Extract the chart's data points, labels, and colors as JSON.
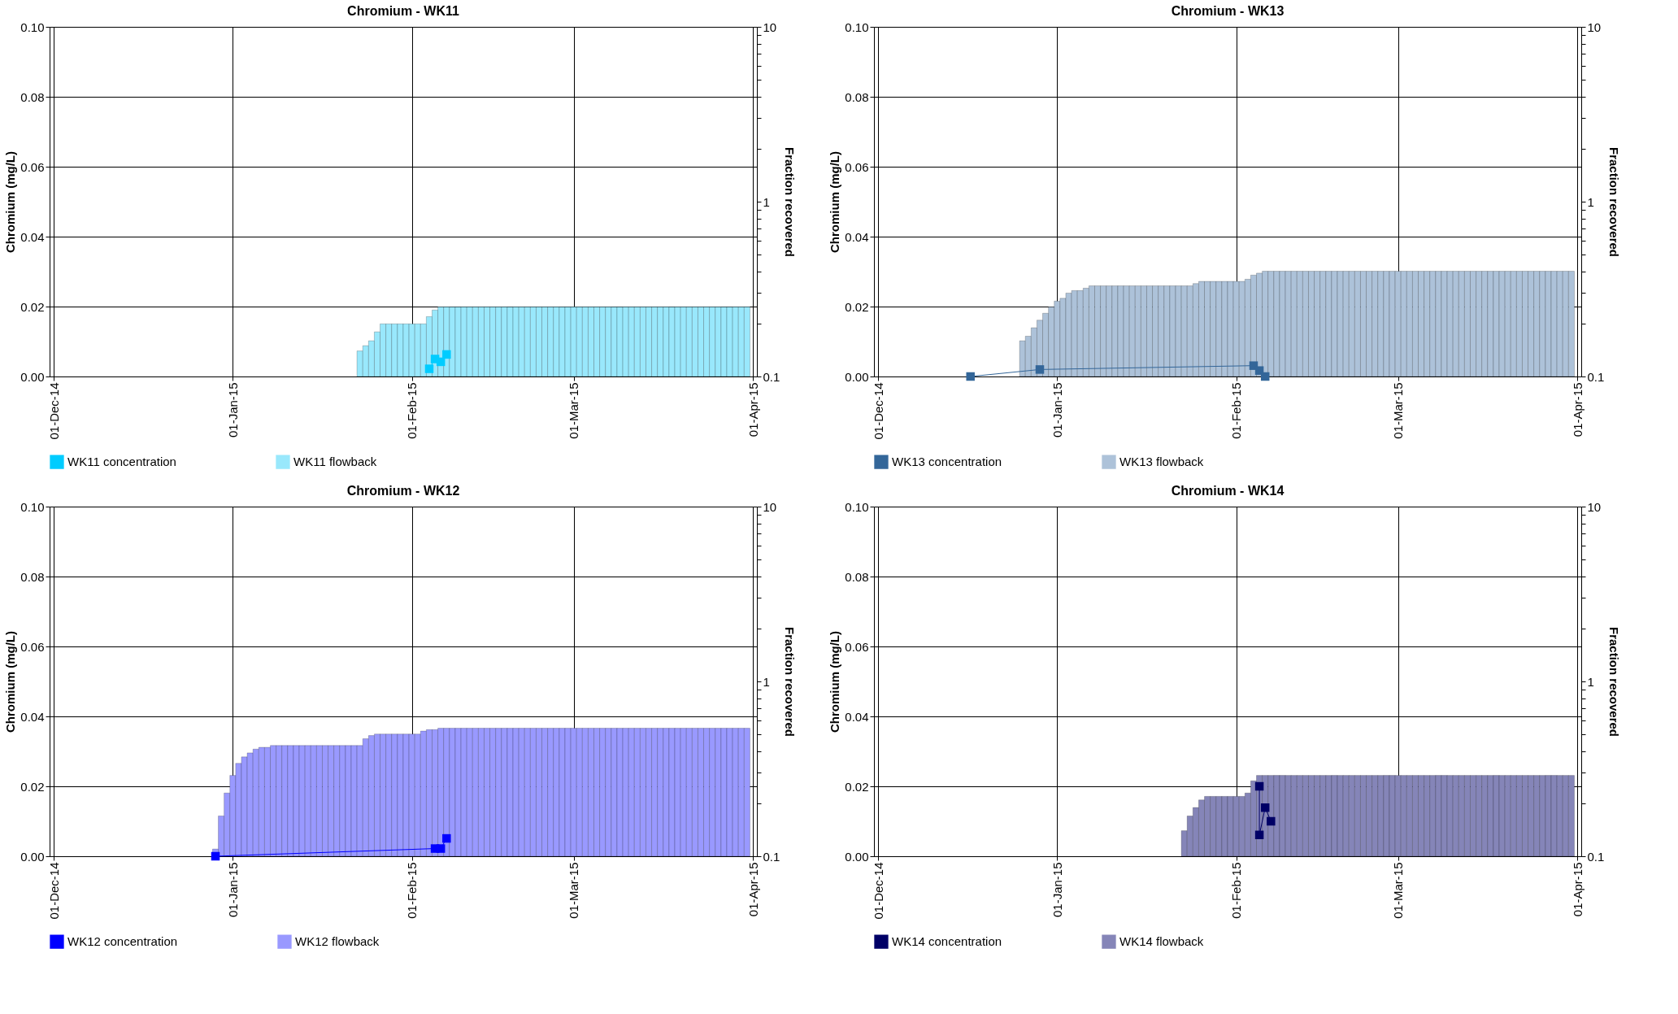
{
  "chart_data": [
    {
      "type": "bar",
      "title": "Chromium - WK11",
      "ylabel": "Chromium (mg/L)",
      "y2label": "Fraction recovered",
      "xlim": [
        "2014-12-01",
        "2015-04-01"
      ],
      "xticks": [
        {
          "value": "2014-12-01",
          "label": "01-Dec-14"
        },
        {
          "value": "2015-01-01",
          "label": "01-Jan-15"
        },
        {
          "value": "2015-02-01",
          "label": "01-Feb-15"
        },
        {
          "value": "2015-03-01",
          "label": "01-Mar-15"
        },
        {
          "value": "2015-04-01",
          "label": "01-Apr-15"
        }
      ],
      "ylim": [
        0,
        0.1
      ],
      "yticks": [
        {
          "value": 0,
          "label": "0.00"
        },
        {
          "value": 0.02,
          "label": "0.02"
        },
        {
          "value": 0.04,
          "label": "0.04"
        },
        {
          "value": 0.06,
          "label": "0.06"
        },
        {
          "value": 0.08,
          "label": "0.08"
        },
        {
          "value": 0.1,
          "label": "0.10"
        }
      ],
      "y2lim": [
        0.1,
        10
      ],
      "log": "y2",
      "y2ticks": [
        0.1,
        {
          "value": 0.2,
          "label": null
        },
        {
          "value": 0.3,
          "label": null
        },
        {
          "value": 0.4,
          "label": null
        },
        {
          "value": 0.5,
          "label": null
        },
        {
          "value": 0.6,
          "label": null
        },
        {
          "value": 0.7,
          "label": null
        },
        {
          "value": 0.8,
          "label": null
        },
        {
          "value": 0.9,
          "label": null
        },
        1,
        {
          "value": 2,
          "label": null
        },
        {
          "value": 3,
          "label": null
        },
        {
          "value": 4,
          "label": null
        },
        {
          "value": 5,
          "label": null
        },
        {
          "value": 6,
          "label": null
        },
        {
          "value": 7,
          "label": null
        },
        {
          "value": 8,
          "label": null
        },
        {
          "value": 9,
          "label": null
        },
        10
      ],
      "grid": true,
      "legend": "bottom",
      "marker": "square",
      "line_style": "solid",
      "series": [
        {
          "name": "WK11 concentration",
          "type": "line",
          "color": "#00ccff",
          "x": [
            "2015-02-04",
            "2015-02-05",
            "2015-02-06",
            "2015-02-07"
          ],
          "values": [
            0.0022,
            0.005,
            0.0042,
            0.0063
          ]
        },
        {
          "name": "WK11 flowback",
          "axis": "y2",
          "color": "#99e8fc",
          "x": [
            "2015-01-23",
            "2015-01-24",
            "2015-01-25",
            "2015-01-26",
            "2015-01-27",
            "2015-01-28",
            "2015-01-29",
            "2015-01-30",
            "2015-01-31",
            "2015-02-01",
            "2015-02-02",
            "2015-02-03",
            "2015-02-04",
            "2015-02-05",
            "2015-02-06",
            "2015-02-07",
            "2015-02-08",
            "2015-02-09",
            "2015-02-10",
            "2015-02-11",
            "2015-02-12",
            "2015-02-13",
            "2015-02-14",
            "2015-02-15",
            "2015-02-16",
            "2015-02-17",
            "2015-02-18",
            "2015-02-19",
            "2015-02-20",
            "2015-02-21",
            "2015-02-22",
            "2015-02-23",
            "2015-02-24",
            "2015-02-25",
            "2015-02-26",
            "2015-02-27",
            "2015-02-28",
            "2015-03-01",
            "2015-03-02",
            "2015-03-03",
            "2015-03-04",
            "2015-03-05",
            "2015-03-06",
            "2015-03-07",
            "2015-03-08",
            "2015-03-09",
            "2015-03-10",
            "2015-03-11",
            "2015-03-12",
            "2015-03-13",
            "2015-03-14",
            "2015-03-15",
            "2015-03-16",
            "2015-03-17",
            "2015-03-18",
            "2015-03-19",
            "2015-03-20",
            "2015-03-21",
            "2015-03-22",
            "2015-03-23",
            "2015-03-24",
            "2015-03-25",
            "2015-03-26",
            "2015-03-27",
            "2015-03-28",
            "2015-03-29",
            "2015-03-30",
            "2015-03-31"
          ],
          "values": [
            0.14,
            0.15,
            0.16,
            0.18,
            0.2,
            0.2,
            0.2,
            0.2,
            0.2,
            0.2,
            0.2,
            0.2,
            0.22,
            0.24,
            0.25,
            0.25,
            0.25,
            0.25,
            0.25,
            0.25,
            0.25,
            0.25,
            0.25,
            0.25,
            0.25,
            0.25,
            0.25,
            0.25,
            0.25,
            0.25,
            0.25,
            0.25,
            0.25,
            0.25,
            0.25,
            0.25,
            0.25,
            0.25,
            0.25,
            0.25,
            0.25,
            0.25,
            0.25,
            0.25,
            0.25,
            0.25,
            0.25,
            0.25,
            0.25,
            0.25,
            0.25,
            0.25,
            0.25,
            0.25,
            0.25,
            0.25,
            0.25,
            0.25,
            0.25,
            0.25,
            0.25,
            0.25,
            0.25,
            0.25,
            0.25,
            0.25,
            0.25,
            0.25
          ]
        }
      ]
    },
    {
      "type": "bar",
      "title": "Chromium - WK13",
      "ylabel": "Chromium (mg/L)",
      "y2label": "Fraction recovered",
      "xlim": [
        "2014-12-01",
        "2015-04-01"
      ],
      "xticks": [
        {
          "value": "2014-12-01",
          "label": "01-Dec-14"
        },
        {
          "value": "2015-01-01",
          "label": "01-Jan-15"
        },
        {
          "value": "2015-02-01",
          "label": "01-Feb-15"
        },
        {
          "value": "2015-03-01",
          "label": "01-Mar-15"
        },
        {
          "value": "2015-04-01",
          "label": "01-Apr-15"
        }
      ],
      "ylim": [
        0,
        0.1
      ],
      "yticks": [
        {
          "value": 0,
          "label": "0.00"
        },
        {
          "value": 0.02,
          "label": "0.02"
        },
        {
          "value": 0.04,
          "label": "0.04"
        },
        {
          "value": 0.06,
          "label": "0.06"
        },
        {
          "value": 0.08,
          "label": "0.08"
        },
        {
          "value": 0.1,
          "label": "0.10"
        }
      ],
      "y2lim": [
        0.1,
        10
      ],
      "log": "y2",
      "y2ticks": [
        0.1,
        {
          "value": 0.2,
          "label": null
        },
        {
          "value": 0.3,
          "label": null
        },
        {
          "value": 0.4,
          "label": null
        },
        {
          "value": 0.5,
          "label": null
        },
        {
          "value": 0.6,
          "label": null
        },
        {
          "value": 0.7,
          "label": null
        },
        {
          "value": 0.8,
          "label": null
        },
        {
          "value": 0.9,
          "label": null
        },
        1,
        {
          "value": 2,
          "label": null
        },
        {
          "value": 3,
          "label": null
        },
        {
          "value": 4,
          "label": null
        },
        {
          "value": 5,
          "label": null
        },
        {
          "value": 6,
          "label": null
        },
        {
          "value": 7,
          "label": null
        },
        {
          "value": 8,
          "label": null
        },
        {
          "value": 9,
          "label": null
        },
        10
      ],
      "grid": true,
      "legend": "bottom",
      "marker": "square",
      "line_style": "solid",
      "series": [
        {
          "name": "WK13 concentration",
          "type": "line",
          "color": "#336699",
          "x": [
            "2014-12-17",
            "2014-12-29",
            "2015-02-04",
            "2015-02-05",
            "2015-02-06"
          ],
          "values": [
            0,
            0.002,
            0.0031,
            0.0017,
            0
          ]
        },
        {
          "name": "WK13 flowback",
          "axis": "y2",
          "color": "#adc2d9",
          "x": [
            "2014-12-26",
            "2014-12-27",
            "2014-12-28",
            "2014-12-29",
            "2014-12-30",
            "2014-12-31",
            "2015-01-01",
            "2015-01-02",
            "2015-01-03",
            "2015-01-04",
            "2015-01-05",
            "2015-01-06",
            "2015-01-07",
            "2015-01-08",
            "2015-01-09",
            "2015-01-10",
            "2015-01-11",
            "2015-01-12",
            "2015-01-13",
            "2015-01-14",
            "2015-01-15",
            "2015-01-16",
            "2015-01-17",
            "2015-01-18",
            "2015-01-19",
            "2015-01-20",
            "2015-01-21",
            "2015-01-22",
            "2015-01-23",
            "2015-01-24",
            "2015-01-25",
            "2015-01-26",
            "2015-01-27",
            "2015-01-28",
            "2015-01-29",
            "2015-01-30",
            "2015-01-31",
            "2015-02-01",
            "2015-02-02",
            "2015-02-03",
            "2015-02-04",
            "2015-02-05",
            "2015-02-06",
            "2015-02-07",
            "2015-02-08",
            "2015-02-09",
            "2015-02-10",
            "2015-02-11",
            "2015-02-12",
            "2015-02-13",
            "2015-02-14",
            "2015-02-15",
            "2015-02-16",
            "2015-02-17",
            "2015-02-18",
            "2015-02-19",
            "2015-02-20",
            "2015-02-21",
            "2015-02-22",
            "2015-02-23",
            "2015-02-24",
            "2015-02-25",
            "2015-02-26",
            "2015-02-27",
            "2015-02-28",
            "2015-03-01",
            "2015-03-02",
            "2015-03-03",
            "2015-03-04",
            "2015-03-05",
            "2015-03-06",
            "2015-03-07",
            "2015-03-08",
            "2015-03-09",
            "2015-03-10",
            "2015-03-11",
            "2015-03-12",
            "2015-03-13",
            "2015-03-14",
            "2015-03-15",
            "2015-03-16",
            "2015-03-17",
            "2015-03-18",
            "2015-03-19",
            "2015-03-20",
            "2015-03-21",
            "2015-03-22",
            "2015-03-23",
            "2015-03-24",
            "2015-03-25",
            "2015-03-26",
            "2015-03-27",
            "2015-03-28",
            "2015-03-29",
            "2015-03-30",
            "2015-03-31"
          ],
          "values": [
            0.16,
            0.17,
            0.19,
            0.21,
            0.23,
            0.25,
            0.27,
            0.28,
            0.3,
            0.31,
            0.31,
            0.32,
            0.33,
            0.33,
            0.33,
            0.33,
            0.33,
            0.33,
            0.33,
            0.33,
            0.33,
            0.33,
            0.33,
            0.33,
            0.33,
            0.33,
            0.33,
            0.33,
            0.33,
            0.33,
            0.34,
            0.35,
            0.35,
            0.35,
            0.35,
            0.35,
            0.35,
            0.35,
            0.35,
            0.36,
            0.38,
            0.39,
            0.4,
            0.4,
            0.4,
            0.4,
            0.4,
            0.4,
            0.4,
            0.4,
            0.4,
            0.4,
            0.4,
            0.4,
            0.4,
            0.4,
            0.4,
            0.4,
            0.4,
            0.4,
            0.4,
            0.4,
            0.4,
            0.4,
            0.4,
            0.4,
            0.4,
            0.4,
            0.4,
            0.4,
            0.4,
            0.4,
            0.4,
            0.4,
            0.4,
            0.4,
            0.4,
            0.4,
            0.4,
            0.4,
            0.4,
            0.4,
            0.4,
            0.4,
            0.4,
            0.4,
            0.4,
            0.4,
            0.4,
            0.4,
            0.4,
            0.4,
            0.4,
            0.4,
            0.4,
            0.4
          ]
        }
      ]
    },
    {
      "type": "bar",
      "title": "Chromium - WK12",
      "ylabel": "Chromium (mg/L)",
      "y2label": "Fraction recovered",
      "xlim": [
        "2014-12-01",
        "2015-04-01"
      ],
      "xticks": [
        {
          "value": "2014-12-01",
          "label": "01-Dec-14"
        },
        {
          "value": "2015-01-01",
          "label": "01-Jan-15"
        },
        {
          "value": "2015-02-01",
          "label": "01-Feb-15"
        },
        {
          "value": "2015-03-01",
          "label": "01-Mar-15"
        },
        {
          "value": "2015-04-01",
          "label": "01-Apr-15"
        }
      ],
      "ylim": [
        0,
        0.1
      ],
      "yticks": [
        {
          "value": 0,
          "label": "0.00"
        },
        {
          "value": 0.02,
          "label": "0.02"
        },
        {
          "value": 0.04,
          "label": "0.04"
        },
        {
          "value": 0.06,
          "label": "0.06"
        },
        {
          "value": 0.08,
          "label": "0.08"
        },
        {
          "value": 0.1,
          "label": "0.10"
        }
      ],
      "y2lim": [
        0.1,
        10
      ],
      "log": "y2",
      "y2ticks": [
        0.1,
        {
          "value": 0.2,
          "label": null
        },
        {
          "value": 0.3,
          "label": null
        },
        {
          "value": 0.4,
          "label": null
        },
        {
          "value": 0.5,
          "label": null
        },
        {
          "value": 0.6,
          "label": null
        },
        {
          "value": 0.7,
          "label": null
        },
        {
          "value": 0.8,
          "label": null
        },
        {
          "value": 0.9,
          "label": null
        },
        1,
        {
          "value": 2,
          "label": null
        },
        {
          "value": 3,
          "label": null
        },
        {
          "value": 4,
          "label": null
        },
        {
          "value": 5,
          "label": null
        },
        {
          "value": 6,
          "label": null
        },
        {
          "value": 7,
          "label": null
        },
        {
          "value": 8,
          "label": null
        },
        {
          "value": 9,
          "label": null
        },
        10
      ],
      "grid": true,
      "legend": "bottom",
      "marker": "square",
      "line_style": "solid",
      "series": [
        {
          "name": "WK12 concentration",
          "type": "line",
          "color": "#0000ff",
          "x": [
            "2014-12-29",
            "2015-02-05",
            "2015-02-06",
            "2015-02-07"
          ],
          "values": [
            0,
            0.0022,
            0.0022,
            0.0051
          ]
        },
        {
          "name": "WK12 flowback",
          "axis": "y2",
          "color": "#9999ff",
          "x": [
            "2014-12-29",
            "2014-12-30",
            "2014-12-31",
            "2015-01-01",
            "2015-01-02",
            "2015-01-03",
            "2015-01-04",
            "2015-01-05",
            "2015-01-06",
            "2015-01-07",
            "2015-01-08",
            "2015-01-09",
            "2015-01-10",
            "2015-01-11",
            "2015-01-12",
            "2015-01-13",
            "2015-01-14",
            "2015-01-15",
            "2015-01-16",
            "2015-01-17",
            "2015-01-18",
            "2015-01-19",
            "2015-01-20",
            "2015-01-21",
            "2015-01-22",
            "2015-01-23",
            "2015-01-24",
            "2015-01-25",
            "2015-01-26",
            "2015-01-27",
            "2015-01-28",
            "2015-01-29",
            "2015-01-30",
            "2015-01-31",
            "2015-02-01",
            "2015-02-02",
            "2015-02-03",
            "2015-02-04",
            "2015-02-05",
            "2015-02-06",
            "2015-02-07",
            "2015-02-08",
            "2015-02-09",
            "2015-02-10",
            "2015-02-11",
            "2015-02-12",
            "2015-02-13",
            "2015-02-14",
            "2015-02-15",
            "2015-02-16",
            "2015-02-17",
            "2015-02-18",
            "2015-02-19",
            "2015-02-20",
            "2015-02-21",
            "2015-02-22",
            "2015-02-23",
            "2015-02-24",
            "2015-02-25",
            "2015-02-26",
            "2015-02-27",
            "2015-02-28",
            "2015-03-01",
            "2015-03-02",
            "2015-03-03",
            "2015-03-04",
            "2015-03-05",
            "2015-03-06",
            "2015-03-07",
            "2015-03-08",
            "2015-03-09",
            "2015-03-10",
            "2015-03-11",
            "2015-03-12",
            "2015-03-13",
            "2015-03-14",
            "2015-03-15",
            "2015-03-16",
            "2015-03-17",
            "2015-03-18",
            "2015-03-19",
            "2015-03-20",
            "2015-03-21",
            "2015-03-22",
            "2015-03-23",
            "2015-03-24",
            "2015-03-25",
            "2015-03-26",
            "2015-03-27",
            "2015-03-28",
            "2015-03-29",
            "2015-03-30",
            "2015-03-31"
          ],
          "values": [
            0.11,
            0.17,
            0.23,
            0.29,
            0.34,
            0.37,
            0.39,
            0.41,
            0.42,
            0.42,
            0.43,
            0.43,
            0.43,
            0.43,
            0.43,
            0.43,
            0.43,
            0.43,
            0.43,
            0.43,
            0.43,
            0.43,
            0.43,
            0.43,
            0.43,
            0.43,
            0.47,
            0.49,
            0.5,
            0.5,
            0.5,
            0.5,
            0.5,
            0.5,
            0.5,
            0.5,
            0.52,
            0.53,
            0.53,
            0.54,
            0.54,
            0.54,
            0.54,
            0.54,
            0.54,
            0.54,
            0.54,
            0.54,
            0.54,
            0.54,
            0.54,
            0.54,
            0.54,
            0.54,
            0.54,
            0.54,
            0.54,
            0.54,
            0.54,
            0.54,
            0.54,
            0.54,
            0.54,
            0.54,
            0.54,
            0.54,
            0.54,
            0.54,
            0.54,
            0.54,
            0.54,
            0.54,
            0.54,
            0.54,
            0.54,
            0.54,
            0.54,
            0.54,
            0.54,
            0.54,
            0.54,
            0.54,
            0.54,
            0.54,
            0.54,
            0.54,
            0.54,
            0.54,
            0.54,
            0.54,
            0.54,
            0.54,
            0.54
          ]
        }
      ]
    },
    {
      "type": "bar",
      "title": "Chromium - WK14",
      "ylabel": "Chromium (mg/L)",
      "y2label": "Fraction recovered",
      "xlim": [
        "2014-12-01",
        "2015-04-01"
      ],
      "xticks": [
        {
          "value": "2014-12-01",
          "label": "01-Dec-14"
        },
        {
          "value": "2015-01-01",
          "label": "01-Jan-15"
        },
        {
          "value": "2015-02-01",
          "label": "01-Feb-15"
        },
        {
          "value": "2015-03-01",
          "label": "01-Mar-15"
        },
        {
          "value": "2015-04-01",
          "label": "01-Apr-15"
        }
      ],
      "ylim": [
        0,
        0.1
      ],
      "yticks": [
        {
          "value": 0,
          "label": "0.00"
        },
        {
          "value": 0.02,
          "label": "0.02"
        },
        {
          "value": 0.04,
          "label": "0.04"
        },
        {
          "value": 0.06,
          "label": "0.06"
        },
        {
          "value": 0.08,
          "label": "0.08"
        },
        {
          "value": 0.1,
          "label": "0.10"
        }
      ],
      "y2lim": [
        0.1,
        10
      ],
      "log": "y2",
      "y2ticks": [
        0.1,
        {
          "value": 0.2,
          "label": null
        },
        {
          "value": 0.3,
          "label": null
        },
        {
          "value": 0.4,
          "label": null
        },
        {
          "value": 0.5,
          "label": null
        },
        {
          "value": 0.6,
          "label": null
        },
        {
          "value": 0.7,
          "label": null
        },
        {
          "value": 0.8,
          "label": null
        },
        {
          "value": 0.9,
          "label": null
        },
        1,
        {
          "value": 2,
          "label": null
        },
        {
          "value": 3,
          "label": null
        },
        {
          "value": 4,
          "label": null
        },
        {
          "value": 5,
          "label": null
        },
        {
          "value": 6,
          "label": null
        },
        {
          "value": 7,
          "label": null
        },
        {
          "value": 8,
          "label": null
        },
        {
          "value": 9,
          "label": null
        },
        10
      ],
      "grid": true,
      "legend": "bottom",
      "marker": "square",
      "line_style": "solid",
      "series": [
        {
          "name": "WK14 concentration",
          "type": "line",
          "color": "#000066",
          "x": [
            "2015-02-05",
            "2015-02-05",
            "2015-02-06",
            "2015-02-07"
          ],
          "values": [
            0.02,
            0.0061,
            0.0139,
            0.01
          ]
        },
        {
          "name": "WK14 flowback",
          "axis": "y2",
          "color": "#8585b8",
          "x": [
            "2015-01-23",
            "2015-01-24",
            "2015-01-25",
            "2015-01-26",
            "2015-01-27",
            "2015-01-28",
            "2015-01-29",
            "2015-01-30",
            "2015-01-31",
            "2015-02-01",
            "2015-02-02",
            "2015-02-03",
            "2015-02-04",
            "2015-02-05",
            "2015-02-06",
            "2015-02-07",
            "2015-02-08",
            "2015-02-09",
            "2015-02-10",
            "2015-02-11",
            "2015-02-12",
            "2015-02-13",
            "2015-02-14",
            "2015-02-15",
            "2015-02-16",
            "2015-02-17",
            "2015-02-18",
            "2015-02-19",
            "2015-02-20",
            "2015-02-21",
            "2015-02-22",
            "2015-02-23",
            "2015-02-24",
            "2015-02-25",
            "2015-02-26",
            "2015-02-27",
            "2015-02-28",
            "2015-03-01",
            "2015-03-02",
            "2015-03-03",
            "2015-03-04",
            "2015-03-05",
            "2015-03-06",
            "2015-03-07",
            "2015-03-08",
            "2015-03-09",
            "2015-03-10",
            "2015-03-11",
            "2015-03-12",
            "2015-03-13",
            "2015-03-14",
            "2015-03-15",
            "2015-03-16",
            "2015-03-17",
            "2015-03-18",
            "2015-03-19",
            "2015-03-20",
            "2015-03-21",
            "2015-03-22",
            "2015-03-23",
            "2015-03-24",
            "2015-03-25",
            "2015-03-26",
            "2015-03-27",
            "2015-03-28",
            "2015-03-29",
            "2015-03-30",
            "2015-03-31"
          ],
          "values": [
            0.14,
            0.17,
            0.19,
            0.21,
            0.22,
            0.22,
            0.22,
            0.22,
            0.22,
            0.22,
            0.22,
            0.23,
            0.27,
            0.29,
            0.29,
            0.29,
            0.29,
            0.29,
            0.29,
            0.29,
            0.29,
            0.29,
            0.29,
            0.29,
            0.29,
            0.29,
            0.29,
            0.29,
            0.29,
            0.29,
            0.29,
            0.29,
            0.29,
            0.29,
            0.29,
            0.29,
            0.29,
            0.29,
            0.29,
            0.29,
            0.29,
            0.29,
            0.29,
            0.29,
            0.29,
            0.29,
            0.29,
            0.29,
            0.29,
            0.29,
            0.29,
            0.29,
            0.29,
            0.29,
            0.29,
            0.29,
            0.29,
            0.29,
            0.29,
            0.29,
            0.29,
            0.29,
            0.29,
            0.29,
            0.29,
            0.29,
            0.29,
            0.29
          ]
        }
      ]
    }
  ]
}
